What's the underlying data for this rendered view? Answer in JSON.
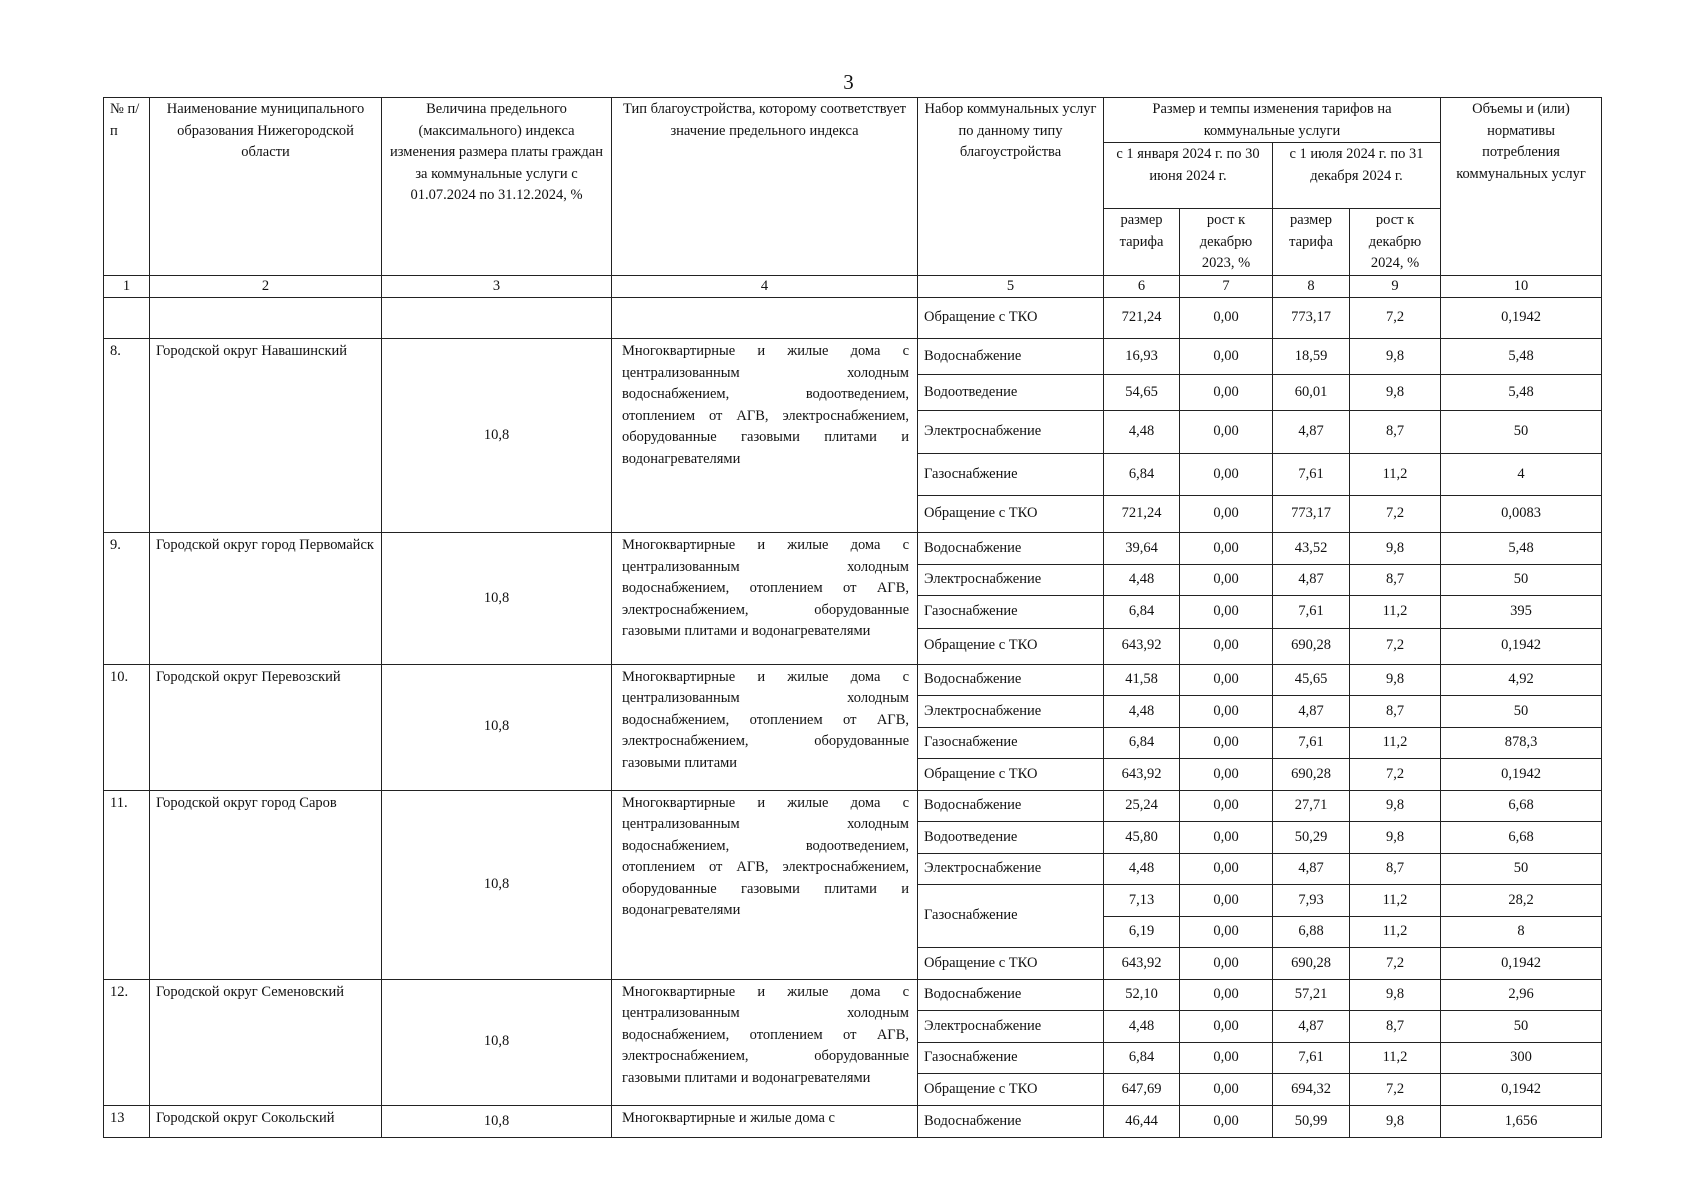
{
  "page_number": "3",
  "header": {
    "col1": "№ п/п",
    "col2": "Наименование муниципального образования Нижегородской области",
    "col3": "Величина предельного (максимального) индекса изменения размера платы граждан за коммунальные услуги с 01.07.2024 по 31.12.2024, %",
    "col4": "Тип благоустройства, которому соответствует значение предельного индекса",
    "col5": "Набор коммунальных услуг по данному типу благоустройства",
    "tariffs": "Размер и темпы изменения тарифов на коммунальные услуги",
    "period1": "с 1 января 2024 г. по 30 июня 2024 г.",
    "period2": "с 1 июля 2024 г. по 31 декабря 2024 г.",
    "tariff_size": "размер тарифа",
    "growth1": "рост к декабрю 2023, %",
    "growth2": "рост к декабрю 2024, %",
    "col10": "Объемы и (или) нормативы потребления коммунальных услуг",
    "numbers": [
      "1",
      "2",
      "3",
      "4",
      "5",
      "6",
      "7",
      "8",
      "9",
      "10"
    ]
  },
  "carryover_row": [
    "Обращение с ТКО",
    "721,24",
    "0,00",
    "773,17",
    "7,2",
    "0,1942"
  ],
  "groups": [
    {
      "num": "8.",
      "name": "Городской округ Навашинский",
      "index": "10,8",
      "type": "Многоквартирные и жилые дома с централизованным холодным водоснабжением, водоотведением, отоплением от АГВ, электроснабжением, оборудованные газовыми плитами и водонагревателями",
      "services": [
        [
          "Водоснабжение",
          "16,93",
          "0,00",
          "18,59",
          "9,8",
          "5,48"
        ],
        [
          "Водоотведение",
          "54,65",
          "0,00",
          "60,01",
          "9,8",
          "5,48"
        ],
        [
          "Электроснабжение",
          "4,48",
          "0,00",
          "4,87",
          "8,7",
          "50"
        ],
        [
          "Газоснабжение",
          "6,84",
          "0,00",
          "7,61",
          "11,2",
          "4"
        ],
        [
          "Обращение с ТКО",
          "721,24",
          "0,00",
          "773,17",
          "7,2",
          "0,0083"
        ]
      ]
    },
    {
      "num": "9.",
      "name": "Городской округ город Первомайск",
      "index": "10,8",
      "type": "Многоквартирные и жилые дома с централизованным холодным водоснабжением, отоплением от АГВ, электроснабжением, оборудованные газовыми плитами и водонагревателями",
      "services": [
        [
          "Водоснабжение",
          "39,64",
          "0,00",
          "43,52",
          "9,8",
          "5,48"
        ],
        [
          "Электроснабжение",
          "4,48",
          "0,00",
          "4,87",
          "8,7",
          "50"
        ],
        [
          "Газоснабжение",
          "6,84",
          "0,00",
          "7,61",
          "11,2",
          "395"
        ],
        [
          "Обращение с ТКО",
          "643,92",
          "0,00",
          "690,28",
          "7,2",
          "0,1942"
        ]
      ]
    },
    {
      "num": "10.",
      "name": "Городской округ Перевозский",
      "index": "10,8",
      "type": "Многоквартирные и жилые дома с централизованным холодным водоснабжением, отоплением от АГВ, электроснабжением, оборудованные газовыми плитами",
      "services": [
        [
          "Водоснабжение",
          "41,58",
          "0,00",
          "45,65",
          "9,8",
          "4,92"
        ],
        [
          "Электроснабжение",
          "4,48",
          "0,00",
          "4,87",
          "8,7",
          "50"
        ],
        [
          "Газоснабжение",
          "6,84",
          "0,00",
          "7,61",
          "11,2",
          "878,3"
        ],
        [
          "Обращение с ТКО",
          "643,92",
          "0,00",
          "690,28",
          "7,2",
          "0,1942"
        ]
      ]
    },
    {
      "num": "11.",
      "name": "Городской округ город Саров",
      "index": "10,8",
      "type": "Многоквартирные и жилые дома с централизованным холодным водоснабжением, водоотведением, отоплением от АГВ, электроснабжением, оборудованные газовыми плитами и водонагревателями",
      "services": [
        [
          "Водоснабжение",
          "25,24",
          "0,00",
          "27,71",
          "9,8",
          "6,68"
        ],
        [
          "Водоотведение",
          "45,80",
          "0,00",
          "50,29",
          "9,8",
          "6,68"
        ],
        [
          "Электроснабжение",
          "4,48",
          "0,00",
          "4,87",
          "8,7",
          "50"
        ],
        [
          "Газоснабжение",
          "7,13",
          "0,00",
          "7,93",
          "11,2",
          "28,2"
        ],
        [
          "",
          "6,19",
          "0,00",
          "6,88",
          "11,2",
          "8"
        ],
        [
          "Обращение с ТКО",
          "643,92",
          "0,00",
          "690,28",
          "7,2",
          "0,1942"
        ]
      ]
    },
    {
      "num": "12.",
      "name": "Городской округ Семеновский",
      "index": "10,8",
      "type": "Многоквартирные и жилые дома с централизованным холодным водоснабжением, отоплением от АГВ, электроснабжением, оборудованные газовыми плитами и водонагревателями",
      "services": [
        [
          "Водоснабжение",
          "52,10",
          "0,00",
          "57,21",
          "9,8",
          "2,96"
        ],
        [
          "Электроснабжение",
          "4,48",
          "0,00",
          "4,87",
          "8,7",
          "50"
        ],
        [
          "Газоснабжение",
          "6,84",
          "0,00",
          "7,61",
          "11,2",
          "300"
        ],
        [
          "Обращение с ТКО",
          "647,69",
          "0,00",
          "694,32",
          "7,2",
          "0,1942"
        ]
      ]
    },
    {
      "num": "13",
      "name": "Городской округ Сокольский",
      "index": "10,8",
      "type": "Многоквартирные и жилые дома с",
      "services": [
        [
          "Водоснабжение",
          "46,44",
          "0,00",
          "50,99",
          "9,8",
          "1,656"
        ]
      ]
    }
  ]
}
